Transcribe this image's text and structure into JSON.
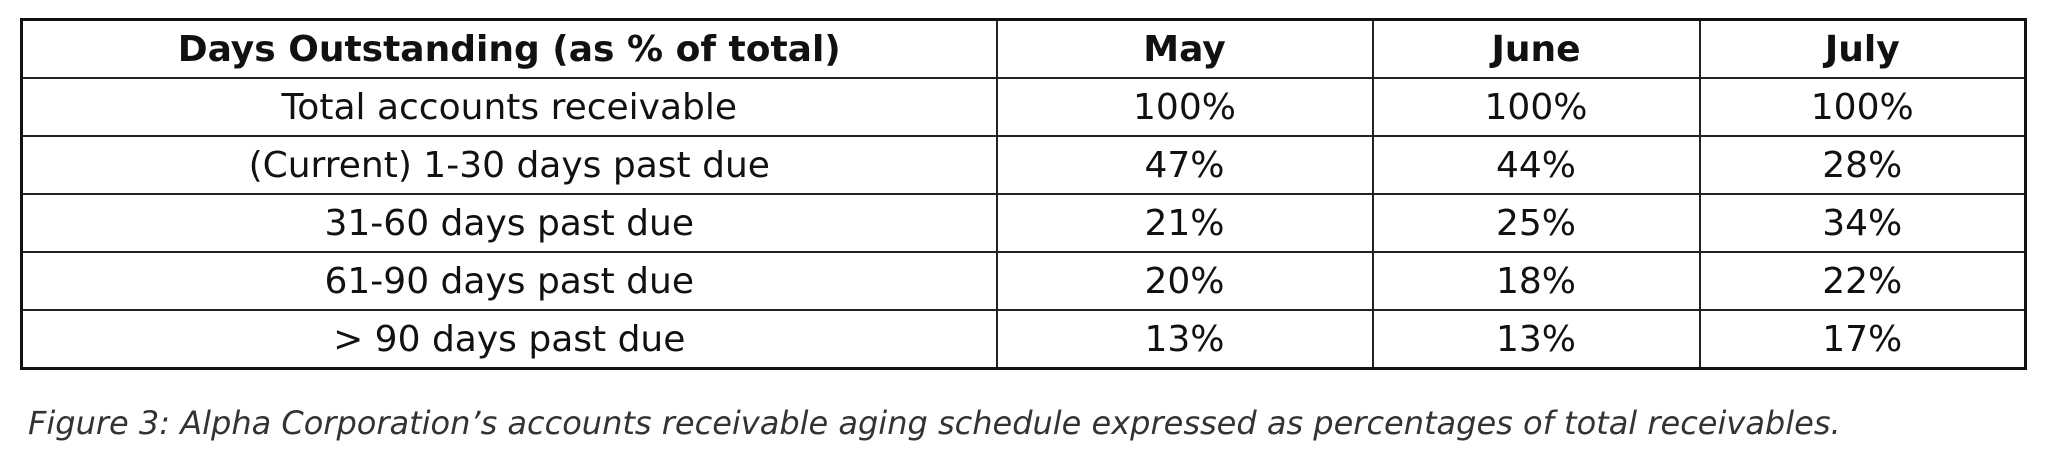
{
  "table": {
    "header": [
      "Days Outstanding (as % of total)",
      "May",
      "June",
      "July"
    ],
    "rows": [
      [
        "Total accounts receivable",
        "100%",
        "100%",
        "100%"
      ],
      [
        "(Current) 1-30 days past due",
        "47%",
        "44%",
        "28%"
      ],
      [
        "31-60 days past due",
        "21%",
        "25%",
        "34%"
      ],
      [
        "61-90 days past due",
        "20%",
        "18%",
        "22%"
      ],
      [
        "> 90 days past due",
        "13%",
        "13%",
        "17%"
      ]
    ]
  },
  "caption": "Figure 3: Alpha Corporation’s accounts receivable aging schedule expressed as percentages of total receivables."
}
